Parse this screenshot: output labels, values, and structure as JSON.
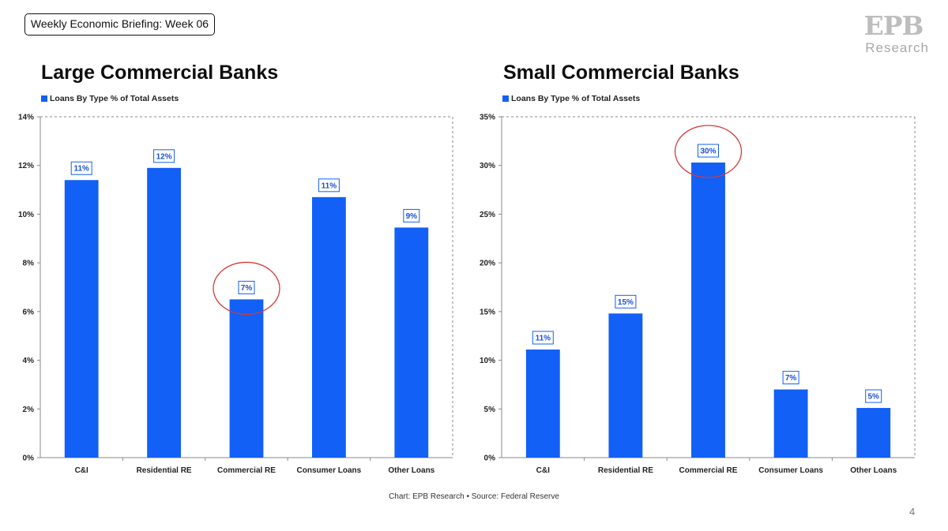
{
  "header": {
    "briefing_label": "Weekly Economic Briefing: Week 06"
  },
  "logo": {
    "mark": "EPB",
    "sub": "Research"
  },
  "colors": {
    "bar": "#1260f5",
    "label_text": "#1a4fd8",
    "circle": "#d43a3a",
    "axis": "#8a8a8a",
    "grid_border": "#8a8a8a"
  },
  "footer": {
    "source": "Chart: EPB Research  •  Source: Federal Reserve",
    "page_number": "4"
  },
  "chart_data": [
    {
      "type": "bar",
      "title": "Large Commercial Banks",
      "legend": "Loans By Type % of Total Assets",
      "categories": [
        "C&I",
        "Residential RE",
        "Commercial RE",
        "Consumer Loans",
        "Other Loans"
      ],
      "values": [
        11.4,
        11.9,
        6.5,
        10.7,
        9.45
      ],
      "data_labels": [
        "11%",
        "12%",
        "7%",
        "11%",
        "9%"
      ],
      "ylim": [
        0,
        14
      ],
      "yticks": [
        0,
        2,
        4,
        6,
        8,
        10,
        12,
        14
      ],
      "ytick_labels": [
        "0%",
        "2%",
        "4%",
        "6%",
        "8%",
        "10%",
        "12%",
        "14%"
      ],
      "highlight_category": "Commercial RE",
      "xlabel": "",
      "ylabel": ""
    },
    {
      "type": "bar",
      "title": "Small Commercial Banks",
      "legend": "Loans By Type % of Total Assets",
      "categories": [
        "C&I",
        "Residential RE",
        "Commercial RE",
        "Consumer Loans",
        "Other Loans"
      ],
      "values": [
        11.1,
        14.8,
        30.3,
        7.0,
        5.1
      ],
      "data_labels": [
        "11%",
        "15%",
        "30%",
        "7%",
        "5%"
      ],
      "ylim": [
        0,
        35
      ],
      "yticks": [
        0,
        5,
        10,
        15,
        20,
        25,
        30,
        35
      ],
      "ytick_labels": [
        "0%",
        "5%",
        "10%",
        "15%",
        "20%",
        "25%",
        "30%",
        "35%"
      ],
      "highlight_category": "Commercial RE",
      "xlabel": "",
      "ylabel": ""
    }
  ]
}
